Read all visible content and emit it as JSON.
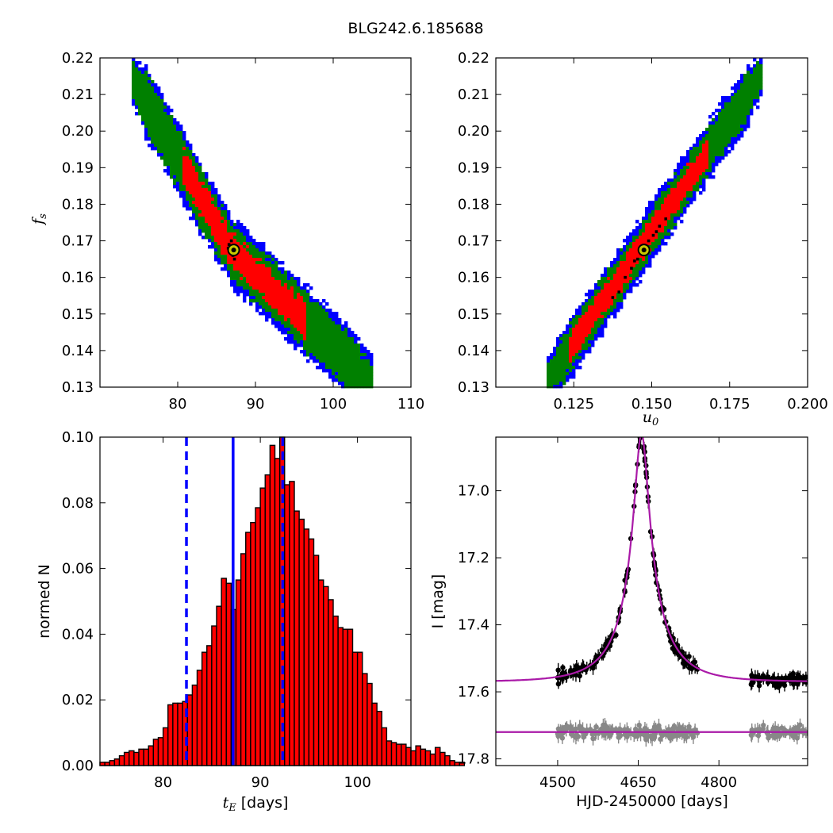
{
  "figure": {
    "title": "BLG242.6.185688"
  },
  "colors": {
    "level_1sigma": "#ff0000",
    "level_2sigma": "#008000",
    "level_3sigma": "#0000ff",
    "mcmc_points": "#000000",
    "best_fit_marker": "#c8c800",
    "histogram_fill": "#ff0000",
    "quantile_lines": "#0000ff",
    "model_curve": "#aa1aa8",
    "data_event": "#000000",
    "data_baseline": "#888888"
  },
  "chart_data": [
    {
      "id": "tE_fs",
      "type": "heatmap",
      "xlabel": "",
      "ylabel": "f_s",
      "ylabel_main": "f",
      "ylabel_sub": "s",
      "xlim": [
        70,
        110
      ],
      "ylim": [
        0.13,
        0.22
      ],
      "xticks": [
        80,
        90,
        100,
        110
      ],
      "xtick_labels": [
        "80",
        "90",
        "100",
        "110"
      ],
      "yticks": [
        0.13,
        0.14,
        0.15,
        0.16,
        0.17,
        0.18,
        0.19,
        0.2,
        0.21,
        0.22
      ],
      "ytick_labels": [
        "0.13",
        "0.14",
        "0.15",
        "0.16",
        "0.17",
        "0.18",
        "0.19",
        "0.20",
        "0.21",
        "0.22"
      ],
      "ridge": [
        [
          74.0,
          0.215
        ],
        [
          87.0,
          0.167
        ],
        [
          105.0,
          0.131
        ]
      ],
      "half_width_1sigma": 0.0045,
      "half_width_2sigma": 0.0075,
      "half_width_3sigma": 0.0095,
      "sigma1_extent": [
        80.5,
        96.5
      ],
      "mcmc_points": [
        [
          86.6,
          0.169
        ],
        [
          86.9,
          0.17
        ],
        [
          87.3,
          0.165
        ],
        [
          86.5,
          0.168
        ],
        [
          87.1,
          0.166
        ]
      ],
      "best_fit": [
        87.2,
        0.1675
      ],
      "grid": false
    },
    {
      "id": "u0_fs",
      "type": "heatmap",
      "xlabel": "u_0",
      "xlabel_main": "u",
      "xlabel_sub": "0",
      "ylabel": "",
      "xlim": [
        0.1,
        0.2
      ],
      "ylim": [
        0.13,
        0.22
      ],
      "xticks": [
        0.125,
        0.15,
        0.175,
        0.2
      ],
      "xtick_labels": [
        "0.125",
        "0.150",
        "0.175",
        "0.200"
      ],
      "yticks": [
        0.13,
        0.14,
        0.15,
        0.16,
        0.17,
        0.18,
        0.19,
        0.2,
        0.21,
        0.22
      ],
      "ytick_labels": [
        "0.13",
        "0.14",
        "0.15",
        "0.16",
        "0.17",
        "0.18",
        "0.19",
        "0.20",
        "0.21",
        "0.22"
      ],
      "ridge": [
        [
          0.116,
          0.131
        ],
        [
          0.185,
          0.215
        ]
      ],
      "half_width_1sigma": 0.0035,
      "half_width_2sigma": 0.006,
      "half_width_3sigma": 0.008,
      "sigma1_extent": [
        0.123,
        0.168
      ],
      "mcmc_points": [
        [
          0.149,
          0.17
        ],
        [
          0.1505,
          0.1715
        ],
        [
          0.1455,
          0.165
        ],
        [
          0.1435,
          0.1625
        ],
        [
          0.1415,
          0.16
        ],
        [
          0.1395,
          0.156
        ],
        [
          0.1525,
          0.174
        ],
        [
          0.1485,
          0.1685
        ],
        [
          0.1445,
          0.1645
        ],
        [
          0.1465,
          0.1665
        ],
        [
          0.1375,
          0.1545
        ],
        [
          0.1515,
          0.1725
        ],
        [
          0.1545,
          0.176
        ]
      ],
      "best_fit": [
        0.1475,
        0.1675
      ],
      "grid": false
    },
    {
      "id": "tE_hist",
      "type": "bar",
      "xlabel": "t_E [days]",
      "xlabel_main": "t",
      "xlabel_sub": "E",
      "xlabel_unit": " [days]",
      "ylabel": "normed N",
      "xlim": [
        73.5,
        105.5
      ],
      "ylim": [
        0,
        0.1
      ],
      "xticks": [
        80,
        90,
        100
      ],
      "xtick_labels": [
        "80",
        "90",
        "100"
      ],
      "yticks": [
        0,
        0.02,
        0.04,
        0.06,
        0.08,
        0.1
      ],
      "ytick_labels": [
        "0.00",
        "0.02",
        "0.04",
        "0.06",
        "0.08",
        "0.10"
      ],
      "bin_start": 73.5,
      "bin_width": 0.5,
      "values": [
        0.001,
        0.001,
        0.0015,
        0.002,
        0.003,
        0.004,
        0.0045,
        0.004,
        0.005,
        0.005,
        0.006,
        0.008,
        0.0085,
        0.0115,
        0.0185,
        0.019,
        0.019,
        0.0195,
        0.0215,
        0.0245,
        0.029,
        0.0345,
        0.0365,
        0.0425,
        0.0485,
        0.057,
        0.0555,
        0.0475,
        0.0565,
        0.0645,
        0.071,
        0.074,
        0.0785,
        0.0845,
        0.0885,
        0.0975,
        0.0935,
        0.1,
        0.0855,
        0.0865,
        0.0775,
        0.075,
        0.072,
        0.069,
        0.064,
        0.0565,
        0.0545,
        0.0505,
        0.0455,
        0.042,
        0.0415,
        0.0415,
        0.0345,
        0.0345,
        0.028,
        0.025,
        0.019,
        0.0165,
        0.0115,
        0.0075,
        0.007,
        0.0065,
        0.0065,
        0.0055,
        0.0045,
        0.006,
        0.005,
        0.0045,
        0.0035,
        0.0055,
        0.004,
        0.003,
        0.0015,
        0.001,
        0.001
      ],
      "median": 87.2,
      "quantile_lines": [
        82.4,
        92.3
      ],
      "grid": false
    },
    {
      "id": "lightcurve",
      "type": "scatter",
      "xlabel": "HJD-2450000 [days]",
      "ylabel": "I [mag]",
      "xlim": [
        4385,
        4965
      ],
      "ylim": [
        17.82,
        16.84
      ],
      "y_inverted": true,
      "xticks": [
        4500,
        4650,
        4800
      ],
      "xtick_labels": [
        "4500",
        "4650",
        "4800"
      ],
      "yticks": [
        17.0,
        17.2,
        17.4,
        17.6,
        17.8
      ],
      "ytick_labels": [
        "17.0",
        "17.2",
        "17.4",
        "17.6",
        "17.8"
      ],
      "model": {
        "t0": 4656,
        "tE": 87.2,
        "u0": 0.1475,
        "fs": 0.1675,
        "I_base": 17.57
      },
      "residual_baseline": 17.72,
      "seasons": [
        [
          4500,
          4760
        ],
        [
          4860,
          4965
        ]
      ],
      "event_seed": 7,
      "grid": false
    }
  ]
}
